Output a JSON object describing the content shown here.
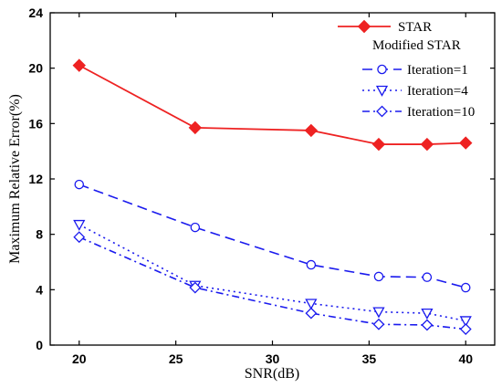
{
  "chart_data": {
    "type": "line",
    "xlabel": "SNR(dB)",
    "ylabel": "Maximum Relative Error(%)",
    "xlim": [
      18.5,
      41.5
    ],
    "ylim": [
      0,
      24
    ],
    "xticks": [
      20,
      25,
      30,
      35,
      40
    ],
    "yticks": [
      0,
      4,
      8,
      12,
      16,
      20,
      24
    ],
    "grid": false,
    "legend_position": "top-right",
    "legend_group_title": "Modified STAR",
    "series": [
      {
        "name": "STAR",
        "color": "#ee2222",
        "line_style": "solid",
        "marker": "filled-diamond",
        "x": [
          20,
          26,
          32,
          35.5,
          38,
          40
        ],
        "y": [
          20.2,
          15.7,
          15.5,
          14.5,
          14.5,
          14.6
        ]
      },
      {
        "name": "Iteration=1",
        "color": "#1a1aee",
        "line_style": "dashed",
        "marker": "open-circle",
        "x": [
          20,
          26,
          32,
          35.5,
          38,
          40
        ],
        "y": [
          11.6,
          8.5,
          5.8,
          4.95,
          4.9,
          4.15
        ]
      },
      {
        "name": "Iteration=4",
        "color": "#1a1aee",
        "line_style": "dotted",
        "marker": "open-triangle-down",
        "x": [
          20,
          26,
          32,
          35.5,
          38,
          40
        ],
        "y": [
          8.7,
          4.3,
          3.0,
          2.4,
          2.3,
          1.75
        ]
      },
      {
        "name": "Iteration=10",
        "color": "#1a1aee",
        "line_style": "dash-dot",
        "marker": "open-diamond",
        "x": [
          20,
          26,
          32,
          35.5,
          38,
          40
        ],
        "y": [
          7.8,
          4.15,
          2.3,
          1.5,
          1.45,
          1.15
        ]
      }
    ]
  }
}
